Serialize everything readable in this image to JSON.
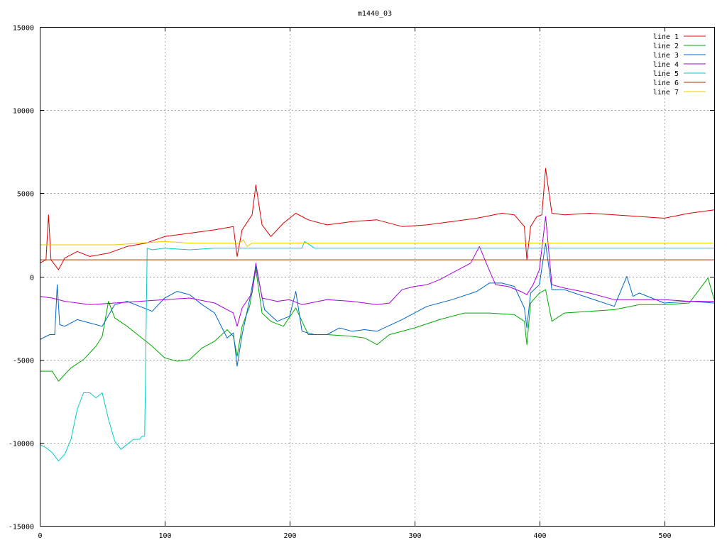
{
  "chart_data": {
    "type": "line",
    "title": "m1440_03",
    "xlabel": "",
    "ylabel": "",
    "xlim": [
      0,
      540
    ],
    "ylim": [
      -15000,
      15000
    ],
    "x_ticks": [
      0,
      100,
      200,
      300,
      400,
      500
    ],
    "y_ticks": [
      -15000,
      -10000,
      -5000,
      0,
      5000,
      10000,
      15000
    ],
    "grid": true,
    "legend_position": "top-right",
    "series": [
      {
        "name": "line 1",
        "color": "#dd0000",
        "x": [
          0,
          5,
          7,
          9,
          15,
          20,
          30,
          40,
          55,
          70,
          85,
          100,
          120,
          140,
          155,
          158,
          162,
          170,
          173,
          178,
          185,
          195,
          205,
          215,
          230,
          250,
          270,
          290,
          310,
          330,
          350,
          370,
          380,
          388,
          390,
          393,
          398,
          402,
          405,
          410,
          420,
          440,
          460,
          480,
          500,
          520,
          540
        ],
        "y": [
          800,
          1000,
          3700,
          1000,
          400,
          1100,
          1500,
          1200,
          1400,
          1800,
          2000,
          2400,
          2600,
          2800,
          3000,
          1200,
          2800,
          3700,
          5500,
          3100,
          2400,
          3200,
          3800,
          3400,
          3100,
          3300,
          3400,
          3000,
          3100,
          3300,
          3500,
          3800,
          3700,
          3000,
          1000,
          3000,
          3600,
          3700,
          6500,
          3800,
          3700,
          3800,
          3700,
          3600,
          3500,
          3800,
          4000
        ]
      },
      {
        "name": "line 2",
        "color": "#00aa00",
        "x": [
          0,
          10,
          15,
          25,
          35,
          45,
          50,
          55,
          60,
          70,
          80,
          90,
          100,
          110,
          120,
          130,
          140,
          150,
          155,
          158,
          162,
          168,
          173,
          178,
          185,
          195,
          205,
          215,
          230,
          250,
          260,
          270,
          280,
          300,
          320,
          340,
          360,
          380,
          388,
          390,
          393,
          400,
          405,
          410,
          420,
          440,
          460,
          480,
          500,
          520,
          535,
          540
        ],
        "y": [
          -5700,
          -5700,
          -6300,
          -5500,
          -5000,
          -4200,
          -3600,
          -1500,
          -2500,
          -3000,
          -3600,
          -4200,
          -4900,
          -5100,
          -5000,
          -4300,
          -3900,
          -3200,
          -3600,
          -4800,
          -3000,
          -1800,
          400,
          -2200,
          -2700,
          -3000,
          -1900,
          -3500,
          -3500,
          -3600,
          -3700,
          -4100,
          -3500,
          -3100,
          -2600,
          -2200,
          -2200,
          -2300,
          -2700,
          -4100,
          -1600,
          -1000,
          -800,
          -2700,
          -2200,
          -2100,
          -2000,
          -1700,
          -1700,
          -1600,
          -100,
          -1400
        ]
      },
      {
        "name": "line 3",
        "color": "#0066cc",
        "x": [
          0,
          8,
          12,
          14,
          16,
          20,
          30,
          40,
          50,
          60,
          70,
          80,
          90,
          100,
          110,
          120,
          130,
          140,
          150,
          155,
          158,
          162,
          168,
          173,
          180,
          190,
          200,
          205,
          210,
          220,
          230,
          240,
          250,
          260,
          270,
          290,
          310,
          330,
          350,
          360,
          370,
          380,
          388,
          390,
          393,
          400,
          405,
          410,
          420,
          440,
          460,
          470,
          475,
          480,
          500,
          520,
          540
        ],
        "y": [
          -3800,
          -3500,
          -3500,
          -500,
          -2900,
          -3000,
          -2600,
          -2800,
          -3000,
          -1700,
          -1500,
          -1800,
          -2100,
          -1300,
          -900,
          -1100,
          -1700,
          -2200,
          -3700,
          -3400,
          -5400,
          -3500,
          -1400,
          600,
          -2000,
          -2700,
          -2400,
          -900,
          -3300,
          -3500,
          -3500,
          -3100,
          -3300,
          -3200,
          -3300,
          -2600,
          -1800,
          -1400,
          -900,
          -400,
          -400,
          -600,
          -1900,
          -3100,
          -1000,
          -500,
          2000,
          -800,
          -800,
          -1300,
          -1800,
          0,
          -1200,
          -1000,
          -1600,
          -1500,
          -1600
        ]
      },
      {
        "name": "line 4",
        "color": "#aa00dd",
        "x": [
          0,
          10,
          20,
          40,
          60,
          80,
          100,
          120,
          140,
          155,
          158,
          162,
          170,
          173,
          178,
          190,
          200,
          210,
          230,
          250,
          270,
          280,
          290,
          300,
          310,
          320,
          330,
          345,
          352,
          358,
          365,
          375,
          385,
          390,
          395,
          400,
          405,
          410,
          420,
          440,
          460,
          480,
          500,
          520,
          540
        ],
        "y": [
          -1200,
          -1300,
          -1500,
          -1700,
          -1600,
          -1500,
          -1400,
          -1300,
          -1600,
          -2200,
          -3000,
          -1900,
          -1000,
          800,
          -1300,
          -1500,
          -1400,
          -1700,
          -1400,
          -1500,
          -1700,
          -1600,
          -800,
          -600,
          -500,
          -200,
          200,
          800,
          1800,
          700,
          -500,
          -600,
          -900,
          -1100,
          -500,
          400,
          3600,
          -500,
          -700,
          -1000,
          -1400,
          -1400,
          -1400,
          -1500,
          -1500
        ]
      },
      {
        "name": "line 5",
        "color": "#00cccc",
        "x": [
          0,
          5,
          10,
          15,
          20,
          25,
          30,
          35,
          40,
          45,
          50,
          55,
          60,
          65,
          70,
          75,
          80,
          82,
          84,
          86,
          90,
          100,
          120,
          140,
          160,
          200,
          210,
          212,
          220,
          260,
          300,
          340,
          380,
          420,
          460,
          500,
          540
        ],
        "y": [
          -10100,
          -10300,
          -10600,
          -11100,
          -10700,
          -9800,
          -8000,
          -7000,
          -7000,
          -7300,
          -7000,
          -8600,
          -9900,
          -10400,
          -10100,
          -9800,
          -9800,
          -9600,
          -9600,
          1700,
          1600,
          1700,
          1600,
          1700,
          1700,
          1700,
          1700,
          2100,
          1700,
          1700,
          1700,
          1700,
          1700,
          1700,
          1700,
          1700,
          1700
        ]
      },
      {
        "name": "line 6",
        "color": "#aa3300",
        "x": [
          0,
          30,
          60,
          100,
          140,
          180,
          220,
          260,
          300,
          340,
          380,
          420,
          460,
          500,
          540
        ],
        "y": [
          1000,
          1000,
          1000,
          1000,
          1000,
          1000,
          1000,
          1000,
          1000,
          1000,
          1000,
          1000,
          1000,
          1000,
          1000
        ]
      },
      {
        "name": "line 7",
        "color": "#eecc00",
        "x": [
          0,
          20,
          40,
          60,
          80,
          100,
          120,
          140,
          160,
          163,
          166,
          170,
          200,
          240,
          280,
          320,
          360,
          400,
          440,
          480,
          520,
          540
        ],
        "y": [
          1900,
          1900,
          1900,
          1900,
          2000,
          2100,
          2000,
          2000,
          2000,
          2200,
          1800,
          2000,
          2000,
          2000,
          2000,
          2000,
          2000,
          2000,
          2000,
          2000,
          2000,
          2000
        ]
      }
    ]
  }
}
